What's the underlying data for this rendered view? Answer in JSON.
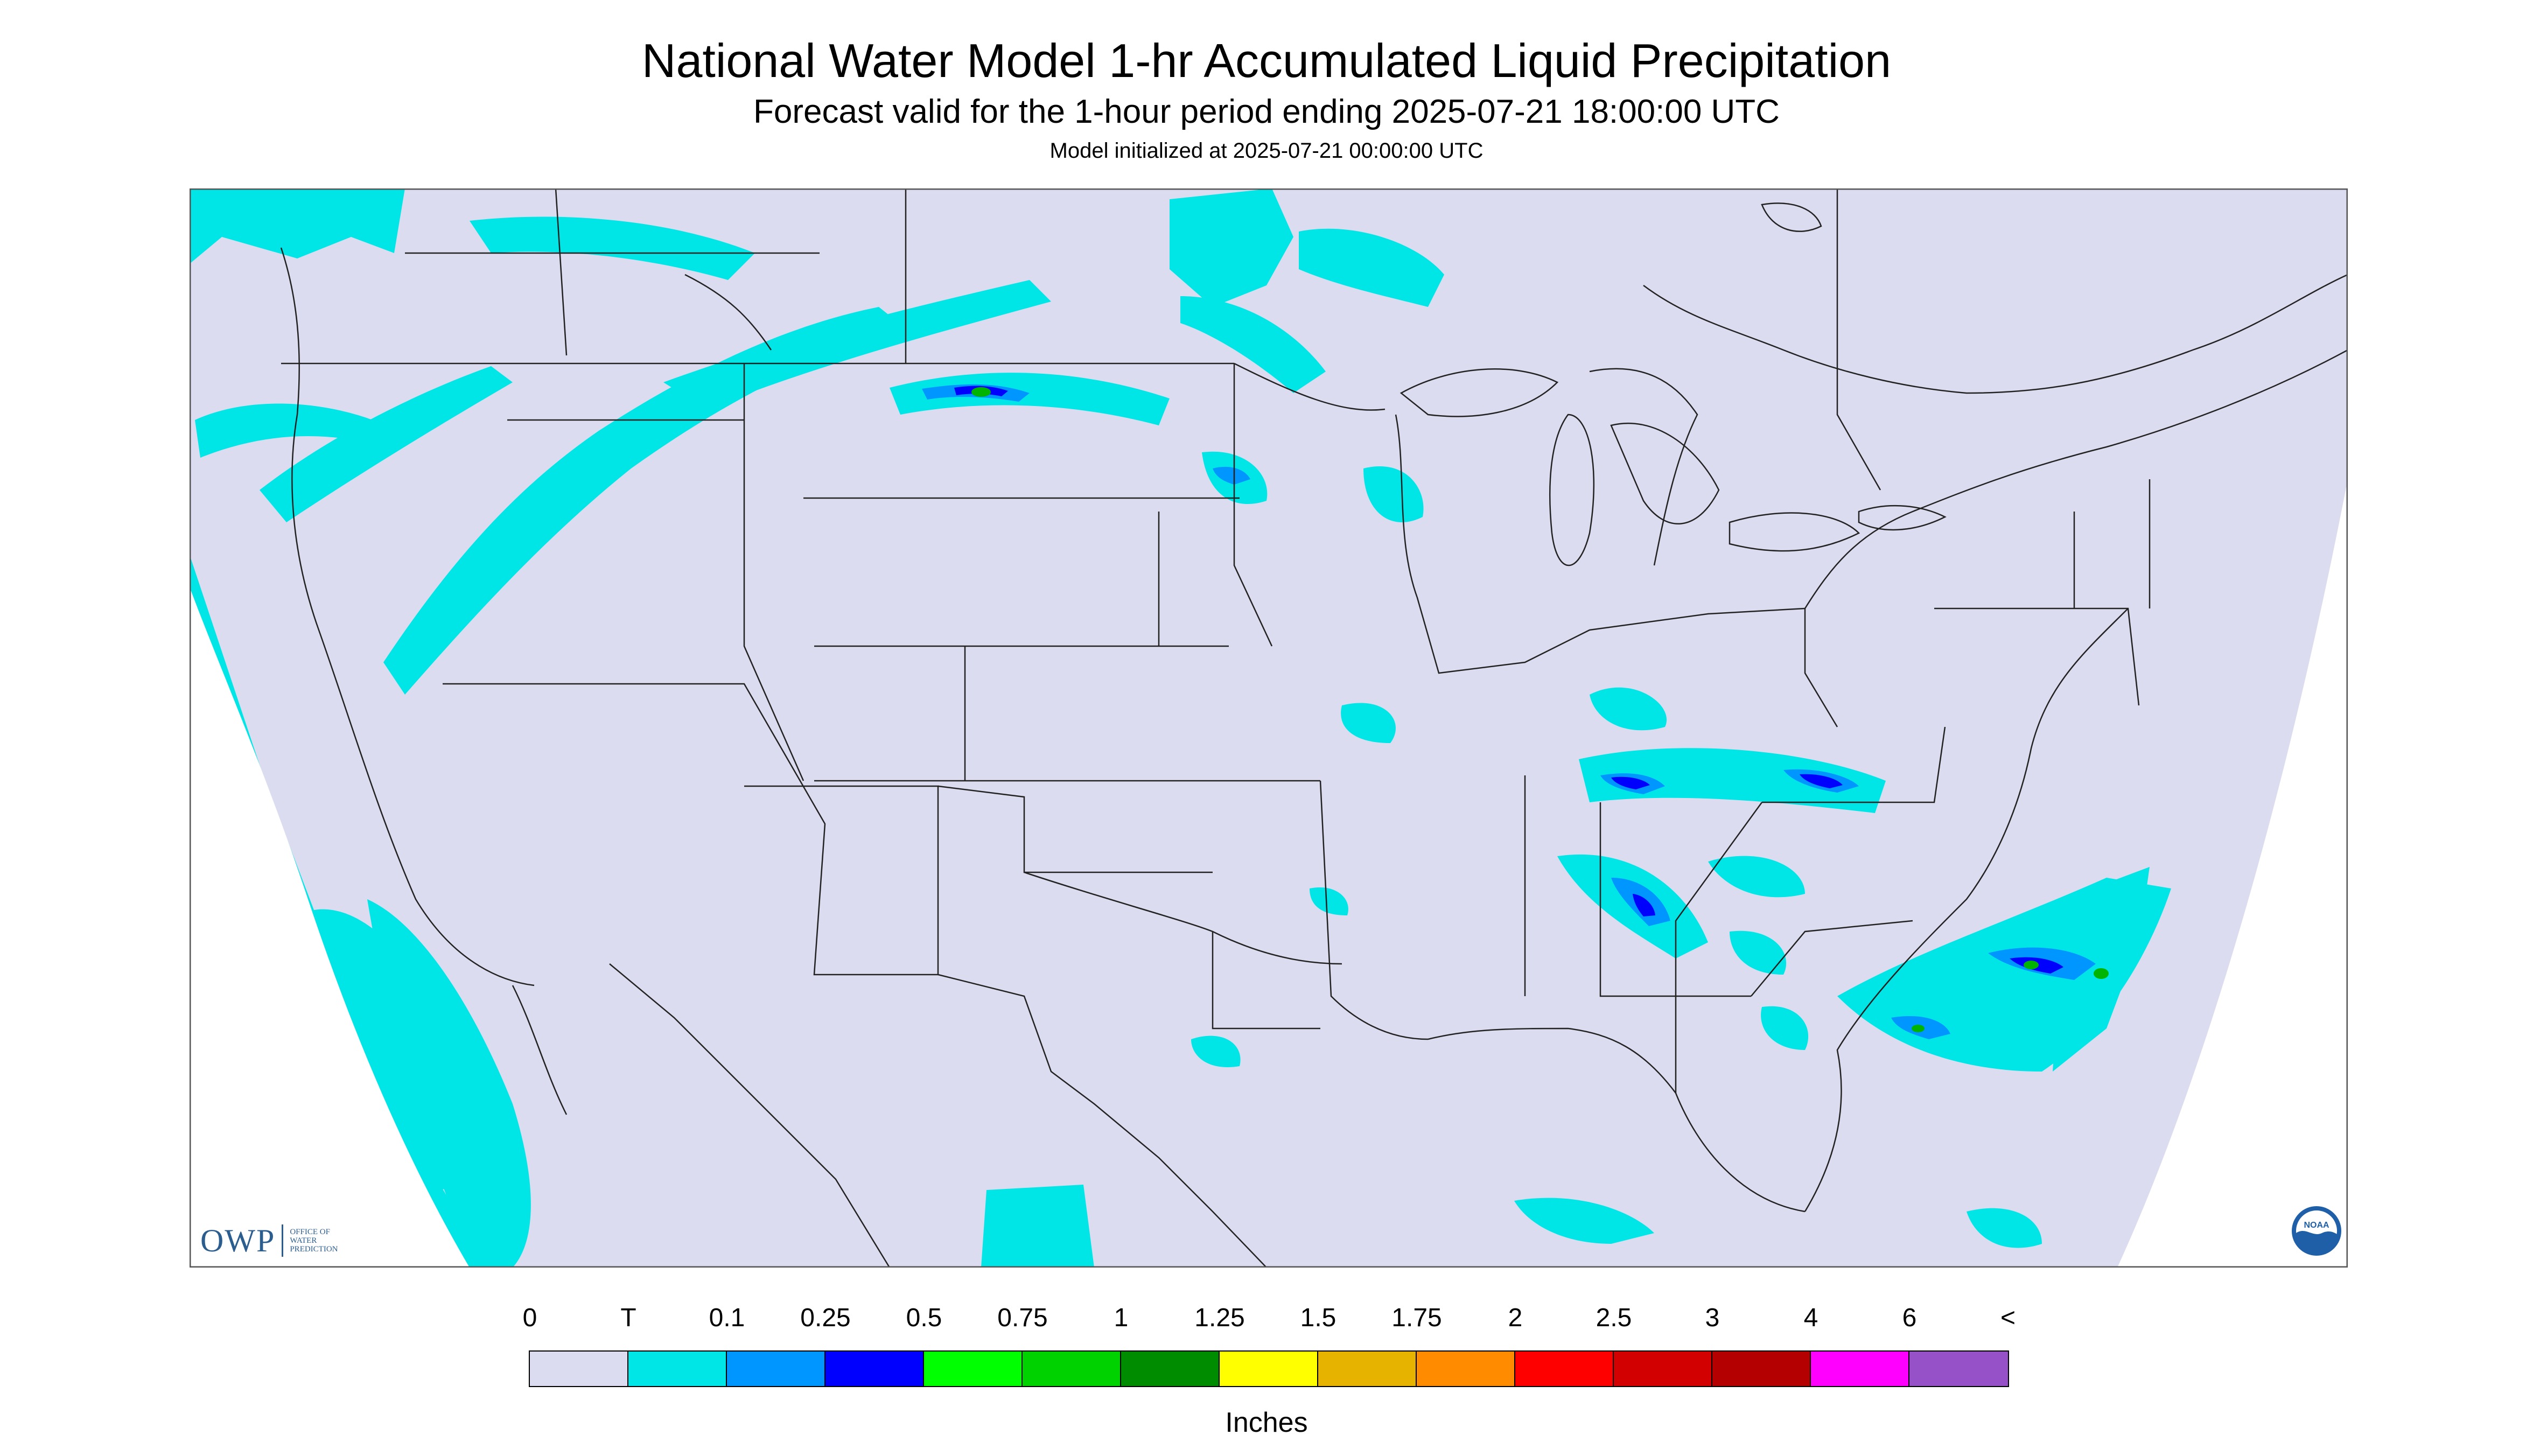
{
  "header": {
    "title": "National Water Model 1-hr Accumulated Liquid Precipitation",
    "subtitle": "Forecast valid for the 1-hour period ending 2025-07-21 18:00:00 UTC",
    "init_line": "Model initialized at 2025-07-21 00:00:00 UTC"
  },
  "colors": {
    "map_background": "#dcdcf0",
    "land_outside_domain": "#ffffff",
    "boundaries": "#222222",
    "trace": "#00e6e6",
    "light": "#0096ff",
    "moderate": "#0000ff",
    "heavy": "#00b400"
  },
  "logos": {
    "owp_mark": "OWP",
    "owp_text": "OFFICE OF\nWATER\nPREDICTION",
    "noaa_text": "NOAA"
  },
  "legend": {
    "labels": [
      "0",
      "T",
      "0.1",
      "0.25",
      "0.5",
      "0.75",
      "1",
      "1.25",
      "1.5",
      "1.75",
      "2",
      "2.5",
      "3",
      "4",
      "6",
      "<"
    ],
    "colors": [
      "#dcdcf0",
      "#00e6e6",
      "#0096ff",
      "#0000ff",
      "#00ff00",
      "#00d200",
      "#008c00",
      "#ffff00",
      "#e6b400",
      "#ff8c00",
      "#ff0000",
      "#d20000",
      "#b40000",
      "#ff00ff",
      "#9650c8"
    ],
    "units": "Inches"
  },
  "map": {
    "region": "Continental United States",
    "precip_areas": [
      {
        "name": "pacific-northwest-band",
        "level": "trace"
      },
      {
        "name": "northern-plains-band",
        "level": "moderate"
      },
      {
        "name": "upper-midwest-cells",
        "level": "trace"
      },
      {
        "name": "ohio-valley-cells",
        "level": "light"
      },
      {
        "name": "southeast-cells",
        "level": "light"
      },
      {
        "name": "atlantic-offshore-cells",
        "level": "heavy"
      },
      {
        "name": "pacific-offshore-field",
        "level": "trace"
      },
      {
        "name": "gulf-scattered-cells",
        "level": "trace"
      }
    ]
  }
}
